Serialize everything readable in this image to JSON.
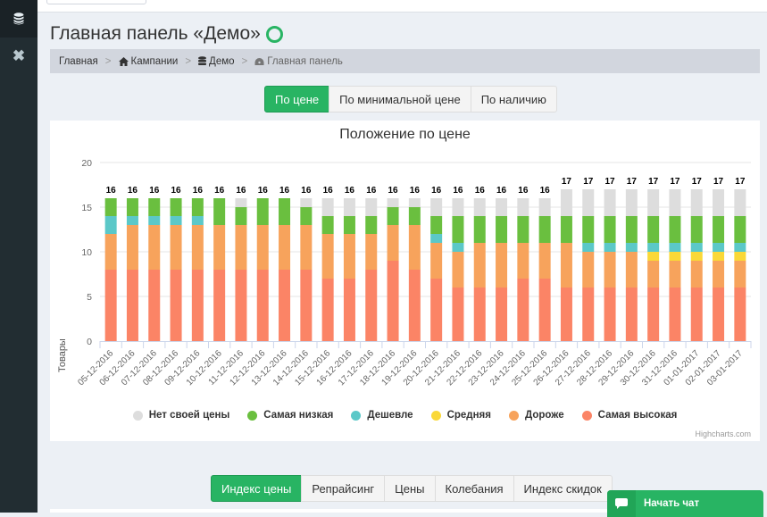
{
  "sidebar": {
    "items": [
      {
        "icon": "database-icon"
      },
      {
        "icon": "close-icon"
      }
    ]
  },
  "page": {
    "title": "Главная панель «Демо»",
    "status_color": "#28b463"
  },
  "breadcrumb": {
    "items": [
      {
        "label": "Главная",
        "icon": ""
      },
      {
        "label": "Кампании",
        "icon": "home-icon"
      },
      {
        "label": "Демо",
        "icon": "database-icon"
      },
      {
        "label": "Главная панель",
        "icon": "dashboard-icon"
      }
    ],
    "separator": ">"
  },
  "top_tabs": {
    "items": [
      "По цене",
      "По минимальной цене",
      "По наличию"
    ],
    "active": 0
  },
  "bottom_tabs": {
    "items": [
      "Индекс цены",
      "Репрайсинг",
      "Цены",
      "Колебания",
      "Индекс скидок"
    ],
    "active": 0
  },
  "chat": {
    "label": "Начать чат"
  },
  "chart_data": {
    "type": "bar",
    "stacked": true,
    "title": "Положение по цене",
    "xlabel": "",
    "ylabel": "Товары",
    "ylim": [
      0,
      20
    ],
    "yticks": [
      0,
      5,
      10,
      15,
      20
    ],
    "grid": true,
    "legend_position": "bottom",
    "credits": "Highcharts.com",
    "categories": [
      "05-12-2016",
      "06-12-2016",
      "07-12-2016",
      "08-12-2016",
      "09-12-2016",
      "10-12-2016",
      "11-12-2016",
      "12-12-2016",
      "13-12-2016",
      "14-12-2016",
      "15-12-2016",
      "16-12-2016",
      "17-12-2016",
      "18-12-2016",
      "19-12-2016",
      "20-12-2016",
      "21-12-2016",
      "22-12-2016",
      "23-12-2016",
      "24-12-2016",
      "25-12-2016",
      "26-12-2016",
      "27-12-2016",
      "28-12-2016",
      "29-12-2016",
      "30-12-2016",
      "31-12-2016",
      "01-01-2017",
      "02-01-2017",
      "03-01-2017"
    ],
    "totals": [
      16,
      16,
      16,
      16,
      16,
      16,
      16,
      16,
      16,
      16,
      16,
      16,
      16,
      16,
      16,
      16,
      16,
      16,
      16,
      16,
      16,
      17,
      17,
      17,
      17,
      17,
      17,
      17,
      17,
      17
    ],
    "series": [
      {
        "name": "Нет своей цены",
        "color": "#dddddd",
        "values": [
          0,
          0,
          0,
          0,
          0,
          0,
          1,
          0,
          0,
          1,
          2,
          2,
          2,
          1,
          1,
          2,
          2,
          2,
          2,
          2,
          2,
          3,
          3,
          3,
          3,
          3,
          3,
          3,
          3,
          3
        ]
      },
      {
        "name": "Самая низкая",
        "color": "#6abf3f",
        "values": [
          2,
          2,
          2,
          2,
          2,
          3,
          2,
          3,
          3,
          2,
          2,
          2,
          2,
          2,
          2,
          2,
          3,
          3,
          3,
          3,
          3,
          3,
          3,
          3,
          3,
          3,
          3,
          3,
          3,
          3
        ]
      },
      {
        "name": "Дешевле",
        "color": "#5bc8c8",
        "values": [
          2,
          1,
          1,
          1,
          1,
          0,
          0,
          0,
          0,
          0,
          0,
          0,
          0,
          0,
          0,
          1,
          1,
          0,
          0,
          0,
          0,
          0,
          1,
          1,
          1,
          1,
          1,
          1,
          1,
          1
        ]
      },
      {
        "name": "Средняя",
        "color": "#fad837",
        "values": [
          0,
          0,
          0,
          0,
          0,
          0,
          0,
          0,
          0,
          0,
          0,
          0,
          0,
          0,
          0,
          0,
          0,
          0,
          0,
          0,
          0,
          0,
          0,
          0,
          0,
          1,
          1,
          1,
          1,
          1
        ]
      },
      {
        "name": "Дороже",
        "color": "#f7a35c",
        "values": [
          4,
          5,
          5,
          5,
          5,
          5,
          5,
          5,
          5,
          5,
          5,
          5,
          4,
          4,
          5,
          4,
          4,
          5,
          5,
          4,
          4,
          5,
          4,
          4,
          4,
          3,
          3,
          3,
          3,
          3
        ]
      },
      {
        "name": "Самая высокая",
        "color": "#fb8466",
        "values": [
          8,
          8,
          8,
          8,
          8,
          8,
          8,
          8,
          8,
          8,
          7,
          7,
          8,
          9,
          8,
          7,
          6,
          6,
          6,
          7,
          7,
          6,
          6,
          6,
          6,
          6,
          6,
          6,
          6,
          6
        ]
      }
    ]
  }
}
